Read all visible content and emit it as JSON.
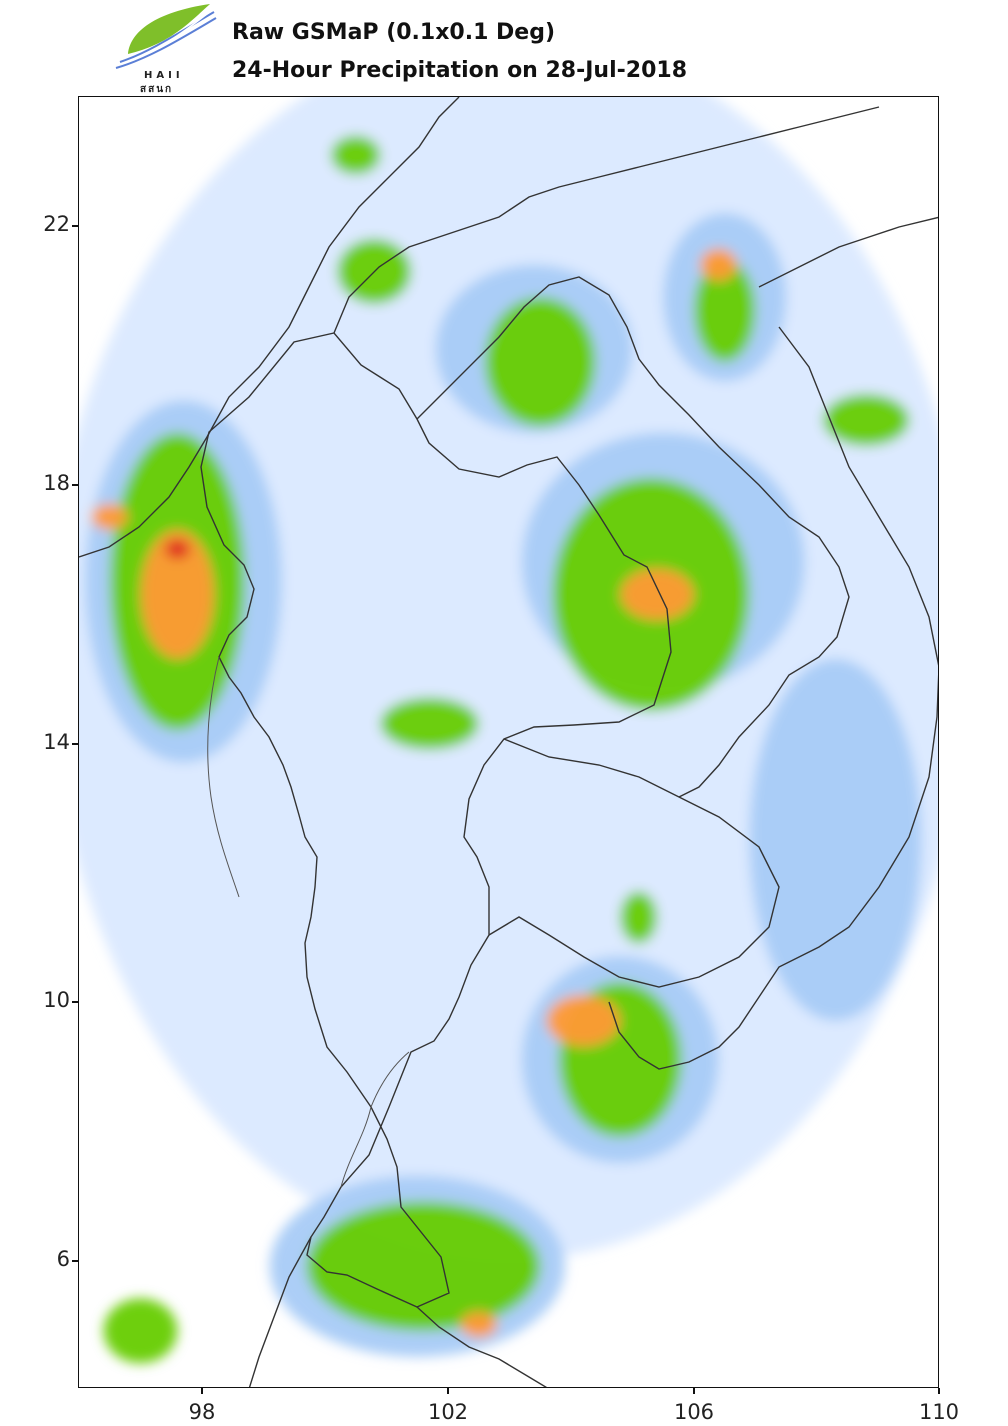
{
  "header": {
    "logo": {
      "icon": "haii-leaf-logo-icon",
      "text_top": "HAII",
      "text_bottom": "สสนก"
    },
    "title_line1": "Raw GSMaP (0.1x0.1 Deg)",
    "title_line2": "24-Hour Precipitation on 28-Jul-2018"
  },
  "axes": {
    "x_ticks": [
      "98",
      "102",
      "106",
      "110"
    ],
    "y_ticks": [
      "22",
      "18",
      "14",
      "10",
      "6"
    ],
    "x_range": [
      96,
      110
    ],
    "y_range": [
      3.5,
      23.5
    ]
  },
  "colors": {
    "very_light": "#d6e6ff",
    "light_blue": "#a8cbf7",
    "light_green": "#a0f090",
    "green": "#66cc00",
    "yellow": "#ffee33",
    "orange": "#ff9933",
    "dark_orange": "#e06622",
    "red": "#dd2222",
    "border": "#333333"
  },
  "rain_regions": [
    {
      "cls": "bg-blue",
      "lon": 103.0,
      "lat": 15.0,
      "rx": 7.5,
      "ry": 9.5
    },
    {
      "cls": "light-blue",
      "lon": 97.7,
      "lat": 16.0,
      "rx": 1.6,
      "ry": 2.8
    },
    {
      "cls": "light-blue",
      "lon": 105.5,
      "lat": 16.3,
      "rx": 2.3,
      "ry": 2.0
    },
    {
      "cls": "light-blue",
      "lon": 103.4,
      "lat": 19.6,
      "rx": 1.6,
      "ry": 1.3
    },
    {
      "cls": "light-blue",
      "lon": 106.5,
      "lat": 20.4,
      "rx": 1.0,
      "ry": 1.3
    },
    {
      "cls": "light-blue",
      "lon": 104.8,
      "lat": 8.6,
      "rx": 1.6,
      "ry": 1.6
    },
    {
      "cls": "light-blue",
      "lon": 101.5,
      "lat": 5.4,
      "rx": 2.4,
      "ry": 1.4
    },
    {
      "cls": "light-blue",
      "lon": 108.3,
      "lat": 12.0,
      "rx": 1.4,
      "ry": 2.8
    },
    {
      "cls": "green",
      "lon": 97.6,
      "lat": 16.0,
      "rx": 1.1,
      "ry": 2.3
    },
    {
      "cls": "green",
      "lon": 105.3,
      "lat": 15.8,
      "rx": 1.6,
      "ry": 1.8
    },
    {
      "cls": "green",
      "lon": 103.5,
      "lat": 19.4,
      "rx": 0.9,
      "ry": 1.0
    },
    {
      "cls": "green",
      "lon": 100.8,
      "lat": 20.8,
      "rx": 0.6,
      "ry": 0.5
    },
    {
      "cls": "green",
      "lon": 106.5,
      "lat": 20.2,
      "rx": 0.5,
      "ry": 0.8
    },
    {
      "cls": "green",
      "lon": 108.8,
      "lat": 18.5,
      "rx": 0.7,
      "ry": 0.4
    },
    {
      "cls": "green",
      "lon": 104.8,
      "lat": 8.6,
      "rx": 1.0,
      "ry": 1.2
    },
    {
      "cls": "green",
      "lon": 101.6,
      "lat": 5.4,
      "rx": 1.9,
      "ry": 1.0
    },
    {
      "cls": "green",
      "lon": 101.7,
      "lat": 13.8,
      "rx": 0.8,
      "ry": 0.4
    },
    {
      "cls": "green",
      "lon": 105.1,
      "lat": 10.8,
      "rx": 0.3,
      "ry": 0.4
    },
    {
      "cls": "green",
      "lon": 100.5,
      "lat": 22.6,
      "rx": 0.4,
      "ry": 0.3
    },
    {
      "cls": "green",
      "lon": 97.0,
      "lat": 4.4,
      "rx": 0.6,
      "ry": 0.5
    },
    {
      "cls": "orange",
      "lon": 97.6,
      "lat": 15.8,
      "rx": 0.6,
      "ry": 1.0
    },
    {
      "cls": "orange",
      "lon": 105.4,
      "lat": 15.8,
      "rx": 0.6,
      "ry": 0.4
    },
    {
      "cls": "orange",
      "lon": 104.2,
      "lat": 9.2,
      "rx": 0.6,
      "ry": 0.4
    },
    {
      "cls": "orange",
      "lon": 106.4,
      "lat": 20.9,
      "rx": 0.3,
      "ry": 0.25
    },
    {
      "cls": "orange",
      "lon": 102.5,
      "lat": 4.5,
      "rx": 0.3,
      "ry": 0.2
    },
    {
      "cls": "orange",
      "lon": 96.5,
      "lat": 17.0,
      "rx": 0.3,
      "ry": 0.2
    },
    {
      "cls": "red",
      "lon": 97.6,
      "lat": 16.5,
      "rx": 0.2,
      "ry": 0.15
    }
  ],
  "chart_data": {
    "type": "heatmap",
    "title": "24-Hour Precipitation on 28-Jul-2018",
    "subtitle": "Raw GSMaP (0.1x0.1 Deg)",
    "xlabel": "",
    "ylabel": "",
    "xlim": [
      96,
      110
    ],
    "ylim": [
      3.5,
      23.5
    ],
    "x_ticks": [
      98,
      102,
      106,
      110
    ],
    "y_ticks": [
      6,
      10,
      14,
      18,
      22
    ],
    "grid": false,
    "legend": "none"
  }
}
